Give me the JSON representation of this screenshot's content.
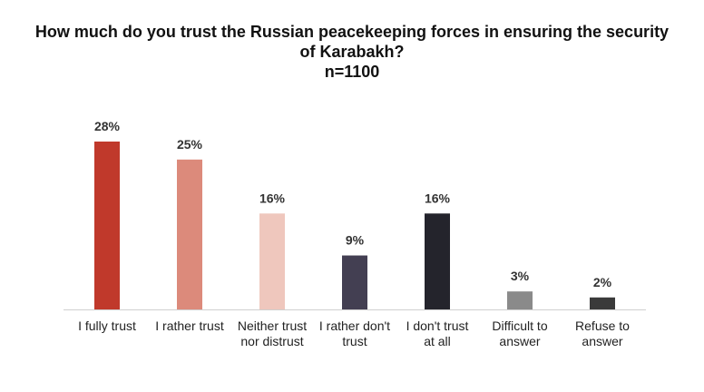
{
  "chart_data": {
    "type": "bar",
    "title": "How much do you trust the Russian peacekeeping forces in ensuring the security of Karabakh?",
    "subtitle": "n=1100",
    "categories": [
      [
        "I fully trust"
      ],
      [
        "I rather trust"
      ],
      [
        "Neither trust",
        "nor distrust"
      ],
      [
        "I rather don't",
        "trust"
      ],
      [
        "I don't trust",
        "at all"
      ],
      [
        "Difficult to",
        "answer"
      ],
      [
        "Refuse to",
        "answer"
      ]
    ],
    "values": [
      28,
      25,
      16,
      9,
      16,
      3,
      2
    ],
    "value_labels": [
      "28%",
      "25%",
      "16%",
      "9%",
      "16%",
      "3%",
      "2%"
    ],
    "colors": [
      "#c0392b",
      "#dc8a7b",
      "#efc7bd",
      "#433f52",
      "#24242c",
      "#8a8a8a",
      "#3a3a3a"
    ],
    "ylim": [
      0,
      28
    ],
    "grid": false,
    "legend": "none"
  }
}
